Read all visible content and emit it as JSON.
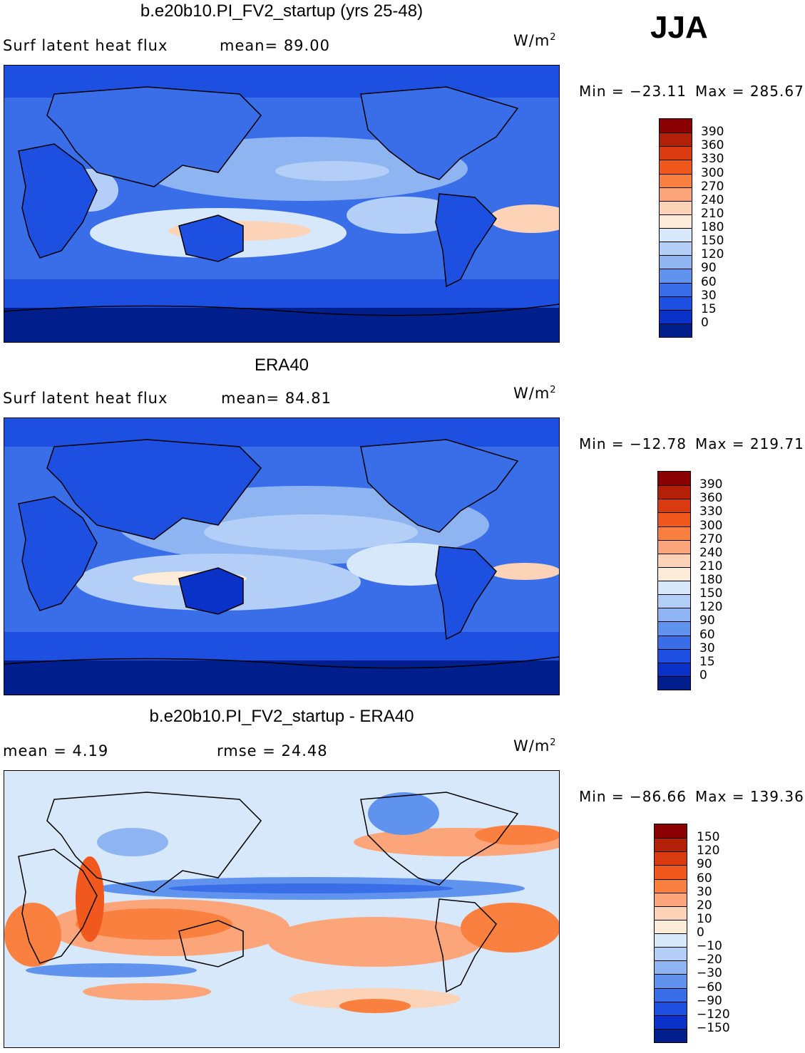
{
  "season": "JJA",
  "panels": [
    {
      "title": "b.e20b10.PI_FV2_startup (yrs 25-48)",
      "left_label": "Surf  latent  heat  flux",
      "center_label": "mean=   89.00",
      "units": "W/m",
      "units_sup": "2",
      "min_text": "Min  =  −23.11",
      "max_text": "Max  =  285.67",
      "colorbar_labels": [
        "390",
        "360",
        "330",
        "300",
        "270",
        "240",
        "210",
        "180",
        "150",
        "120",
        "90",
        "60",
        "30",
        "15",
        "0"
      ]
    },
    {
      "title": "ERA40",
      "left_label": "Surf  latent  heat  flux",
      "center_label": "mean=   84.81",
      "units": "W/m",
      "units_sup": "2",
      "min_text": "Min  =  −12.78",
      "max_text": "Max  =  219.71",
      "colorbar_labels": [
        "390",
        "360",
        "330",
        "300",
        "270",
        "240",
        "210",
        "180",
        "150",
        "120",
        "90",
        "60",
        "30",
        "15",
        "0"
      ]
    },
    {
      "title": "b.e20b10.PI_FV2_startup - ERA40",
      "left_label": "mean  =     4.19",
      "center_label": "rmse  =    24.48",
      "units": "W/m",
      "units_sup": "2",
      "min_text": "Min  =  −86.66",
      "max_text": "Max  =  139.36",
      "colorbar_labels": [
        "150",
        "120",
        "90",
        "60",
        "30",
        "20",
        "10",
        "0",
        "−10",
        "−20",
        "−30",
        "−60",
        "−90",
        "−120",
        "−150"
      ]
    }
  ],
  "colors": {
    "field_scale": [
      "#8b0000",
      "#b22008",
      "#d93a10",
      "#f0581e",
      "#fa8040",
      "#fca57a",
      "#fdd3b8",
      "#fdebd9",
      "#d8e8fb",
      "#b4cff7",
      "#8fb4f2",
      "#6093ee",
      "#3a6ee8",
      "#1d4fe0",
      "#0a32c8",
      "#001f8c"
    ],
    "diff_scale": [
      "#8b0000",
      "#b22008",
      "#d93a10",
      "#f0581e",
      "#fa8040",
      "#fca57a",
      "#fdd3b8",
      "#fdebd9",
      "#d8e8fb",
      "#b4cff7",
      "#8fb4f2",
      "#6093ee",
      "#3a6ee8",
      "#1d4fe0",
      "#0a32c8",
      "#001f8c"
    ]
  }
}
